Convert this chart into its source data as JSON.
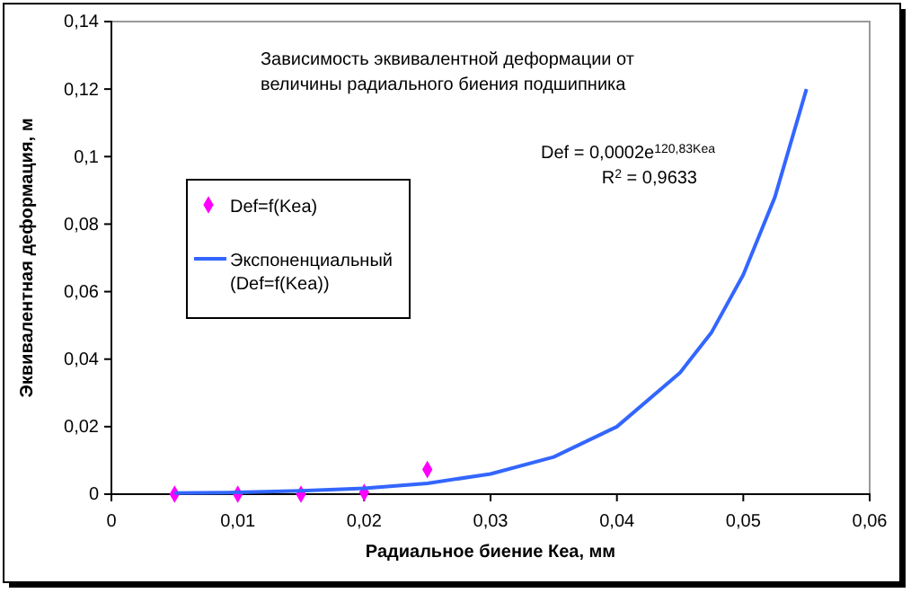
{
  "chart_data": {
    "type": "scatter",
    "title": "Зависимость эквивалентной деформации от величины радиального биения подшипника",
    "xlabel": "Радиальное биение Кеа, мм",
    "ylabel": "Эквивалентная деформация, м",
    "x": [
      0.005,
      0.01,
      0.015,
      0.02,
      0.025
    ],
    "series": [
      {
        "name": "Def=f(Kea)",
        "color": "#ff00ff",
        "marker": "diamond",
        "values": [
          0,
          0,
          0,
          0.0005,
          0.0073
        ]
      },
      {
        "name": "Экспоненциальный (Def=f(Kea))",
        "type": "line",
        "color": "#3366ff",
        "x": [
          0.005,
          0.01,
          0.015,
          0.02,
          0.025,
          0.03,
          0.035,
          0.04,
          0.045,
          0.0475,
          0.05,
          0.0525,
          0.055
        ],
        "values": [
          0.0003,
          0.0005,
          0.001,
          0.0017,
          0.0032,
          0.006,
          0.011,
          0.02,
          0.036,
          0.048,
          0.065,
          0.088,
          0.12
        ]
      }
    ],
    "annotations": [
      "Def = 0,0002e$^{120,83Kea}$",
      "R$^{2}$ = 0,9633"
    ],
    "xlim": [
      0,
      0.06
    ],
    "xticks": [
      0,
      {
        "value": 0.01,
        "label": "0,01"
      },
      {
        "value": 0.02,
        "label": "0,02"
      },
      {
        "value": 0.03,
        "label": "0,03"
      },
      {
        "value": 0.04,
        "label": "0,04"
      },
      {
        "value": 0.05,
        "label": "0,05"
      },
      {
        "value": 0.06,
        "label": "0,06"
      }
    ],
    "ylim": [
      0,
      0.14
    ],
    "yticks": [
      0,
      {
        "value": 0.02,
        "label": "0,02"
      },
      {
        "value": 0.04,
        "label": "0,04"
      },
      {
        "value": 0.06,
        "label": "0,06"
      },
      {
        "value": 0.08,
        "label": "0,08"
      },
      {
        "value": 0.1,
        "label": "0,1"
      },
      {
        "value": 0.12,
        "label": "0,12"
      },
      {
        "value": 0.14,
        "label": "0,14"
      }
    ],
    "grid": false,
    "legend": "top left"
  }
}
